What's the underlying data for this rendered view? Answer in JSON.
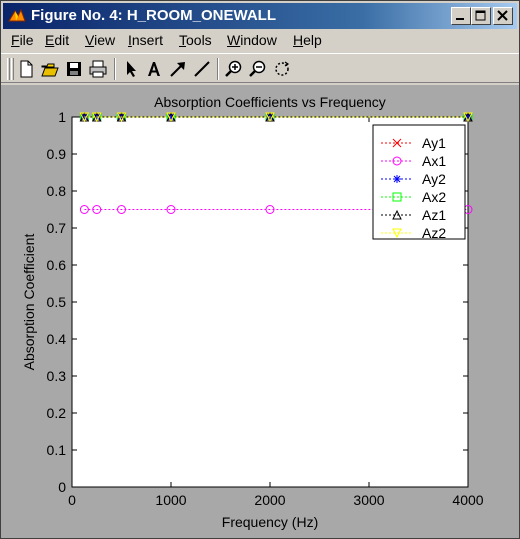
{
  "window": {
    "title": "Figure No. 4: H_ROOM_ONEWALL",
    "buttons": [
      "minimize",
      "maximize",
      "close"
    ]
  },
  "menu": {
    "items": [
      {
        "label": "File",
        "key": "F",
        "rest": "ile"
      },
      {
        "label": "Edit",
        "key": "E",
        "rest": "dit"
      },
      {
        "label": "View",
        "key": "V",
        "rest": "iew"
      },
      {
        "label": "Insert",
        "key": "I",
        "rest": "nsert"
      },
      {
        "label": "Tools",
        "key": "T",
        "rest": "ools"
      },
      {
        "label": "Window",
        "key": "W",
        "rest": "indow"
      },
      {
        "label": "Help",
        "key": "H",
        "rest": "elp"
      }
    ]
  },
  "toolbar": {
    "buttons": [
      "new-figure",
      "open-file",
      "save",
      "print",
      "select-arrow",
      "insert-text",
      "insert-arrow",
      "insert-line",
      "zoom-in",
      "zoom-out",
      "rotate-3d"
    ]
  },
  "chart_data": {
    "type": "line",
    "title": "Absorption Coefficients vs Frequency",
    "xlabel": "Frequency (Hz)",
    "ylabel": "Absorption Coefficient",
    "xlim": [
      0,
      4000
    ],
    "ylim": [
      0,
      1
    ],
    "xticks": [
      0,
      1000,
      2000,
      3000,
      4000
    ],
    "yticks": [
      0,
      0.1,
      0.2,
      0.3,
      0.4,
      0.5,
      0.6,
      0.7,
      0.8,
      0.9,
      1
    ],
    "x": [
      125,
      250,
      500,
      1000,
      2000,
      4000
    ],
    "grid": false,
    "legend_position": "top-right",
    "series": [
      {
        "name": "Ay1",
        "values": [
          1,
          1,
          1,
          1,
          1,
          1
        ],
        "color": "#ff0000",
        "marker": "x",
        "dash": "dotted"
      },
      {
        "name": "Ax1",
        "values": [
          0.75,
          0.75,
          0.75,
          0.75,
          0.75,
          0.75
        ],
        "color": "#ff00ff",
        "marker": "o",
        "dash": "dotted"
      },
      {
        "name": "Ay2",
        "values": [
          1,
          1,
          1,
          1,
          1,
          1
        ],
        "color": "#0000ff",
        "marker": "*",
        "dash": "dotted"
      },
      {
        "name": "Ax2",
        "values": [
          1,
          1,
          1,
          1,
          1,
          1
        ],
        "color": "#00ff00",
        "marker": "s",
        "dash": "dotted"
      },
      {
        "name": "Az1",
        "values": [
          1,
          1,
          1,
          1,
          1,
          1
        ],
        "color": "#000000",
        "marker": "^",
        "dash": "dotted"
      },
      {
        "name": "Az2",
        "values": [
          1,
          1,
          1,
          1,
          1,
          1
        ],
        "color": "#ffff00",
        "marker": "v",
        "dash": "dotted"
      }
    ]
  }
}
